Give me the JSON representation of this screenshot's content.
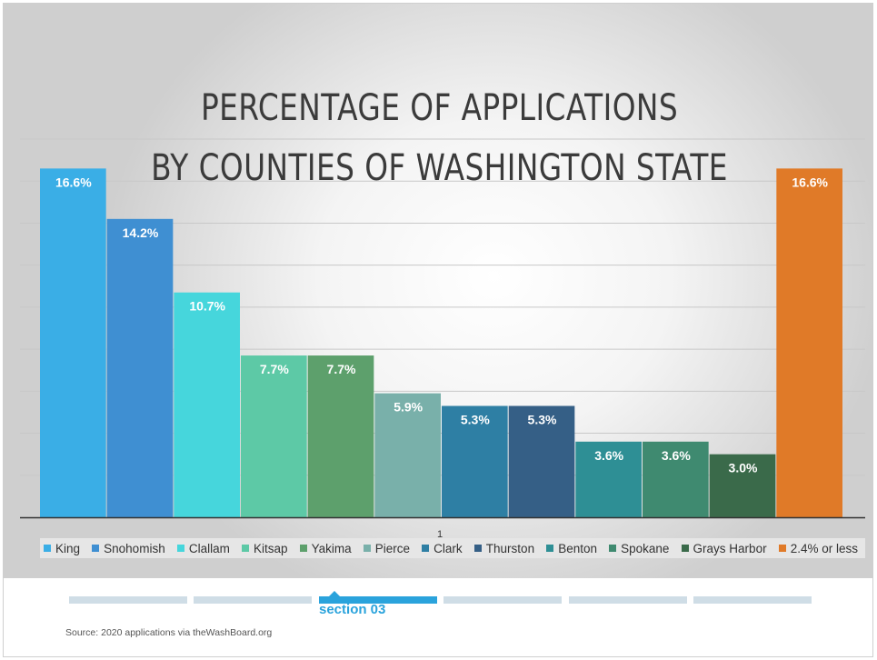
{
  "title": {
    "line1": "PERCENTAGE OF APPLICATIONS",
    "line2": "BY COUNTIES OF WASHINGTON STATE"
  },
  "chart_data": {
    "type": "bar",
    "categories": [
      "1"
    ],
    "series": [
      {
        "name": "King",
        "values": [
          16.6
        ],
        "color": "#3aaee6",
        "label": "16.6%"
      },
      {
        "name": "Snohomish",
        "values": [
          14.2
        ],
        "color": "#3f8fd2",
        "label": "14.2%"
      },
      {
        "name": "Clallam",
        "values": [
          10.7
        ],
        "color": "#46d6dc",
        "label": "10.7%"
      },
      {
        "name": "Kitsap",
        "values": [
          7.7
        ],
        "color": "#5dc9a6",
        "label": "7.7%"
      },
      {
        "name": "Yakima",
        "values": [
          7.7
        ],
        "color": "#5da06c",
        "label": "7.7%"
      },
      {
        "name": "Pierce",
        "values": [
          5.9
        ],
        "color": "#79b0aa",
        "label": "5.9%"
      },
      {
        "name": "Clark",
        "values": [
          5.3
        ],
        "color": "#2e7fa4",
        "label": "5.3%"
      },
      {
        "name": "Thurston",
        "values": [
          5.3
        ],
        "color": "#355f86",
        "label": "5.3%"
      },
      {
        "name": "Benton",
        "values": [
          3.6
        ],
        "color": "#2e8f95",
        "label": "3.6%"
      },
      {
        "name": "Spokane",
        "values": [
          3.6
        ],
        "color": "#3f8a70",
        "label": "3.6%"
      },
      {
        "name": "Grays Harbor",
        "values": [
          3.0
        ],
        "color": "#3a6a4a",
        "label": "3.0%"
      },
      {
        "name": "2.4% or less",
        "values": [
          16.6
        ],
        "color": "#e07a28",
        "label": "16.6%"
      }
    ],
    "ylim": [
      0,
      18
    ],
    "grid": true,
    "legend_position": "bottom"
  },
  "footer": {
    "active_section": "section 03",
    "source": "Source: 2020 applications via theWashBoard.org"
  }
}
